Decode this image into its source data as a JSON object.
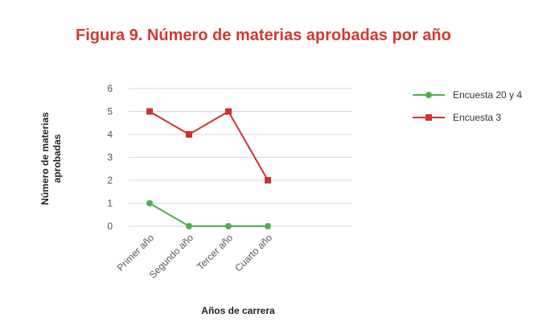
{
  "chart_data": {
    "type": "line",
    "title": "Figura 9. Número de materias aprobadas por año",
    "xlabel": "Años de carrera",
    "ylabel": [
      "Número de materias",
      "aprobadas"
    ],
    "categories": [
      "Primer año",
      "Segundo año",
      "Tercer año",
      "Cuarto año"
    ],
    "yticks": [
      "0",
      "1",
      "2",
      "3",
      "4",
      "5",
      "6"
    ],
    "ylim": [
      0,
      6
    ],
    "grid": true,
    "legend_position": "right",
    "series": [
      {
        "name": "Encuesta 20 y 4",
        "values": [
          1,
          0,
          0,
          0
        ],
        "color": "#4caf50",
        "marker": "circle"
      },
      {
        "name": "Encuesta 3",
        "values": [
          5,
          4,
          5,
          2
        ],
        "color": "#d32f2f",
        "marker": "square"
      }
    ]
  }
}
